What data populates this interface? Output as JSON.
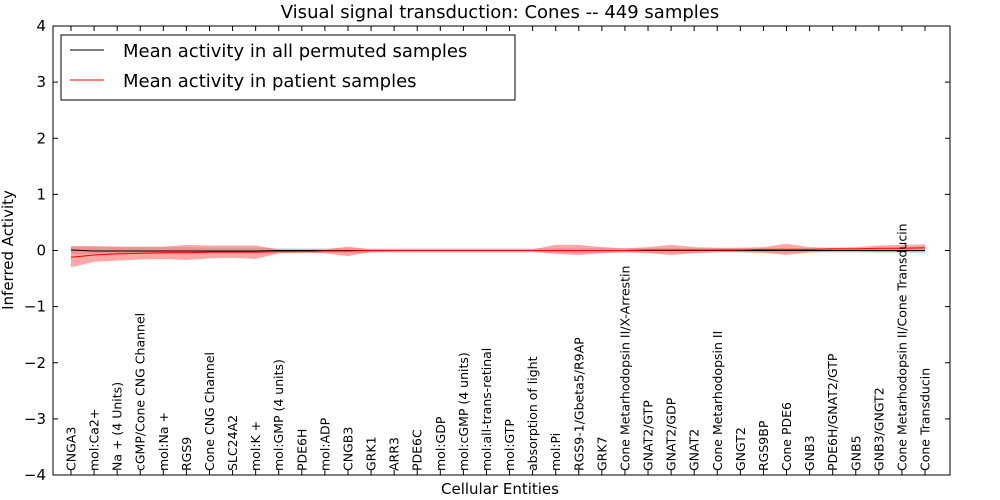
{
  "chart_data": {
    "type": "line",
    "title": "Visual signal transduction: Cones -- 449 samples",
    "xlabel": "Cellular Entities",
    "ylabel": "Inferred Activity",
    "ylim": [
      -4,
      4
    ],
    "yticks": [
      -4,
      -3,
      -2,
      -1,
      0,
      1,
      2,
      3,
      4
    ],
    "ytick_labels": [
      "−4",
      "−3",
      "−2",
      "−1",
      "0",
      "1",
      "2",
      "3",
      "4"
    ],
    "legend_position": "top-left",
    "categories": [
      "CNGA3",
      "mol:Ca2+",
      "Na + (4 Units)",
      "cGMP/Cone CNG Channel",
      "mol:Na +",
      "RGS9",
      "Cone CNG Channel",
      "SLC24A2",
      "mol:K +",
      "mol:GMP (4 units)",
      "PDE6H",
      "mol:ADP",
      "CNGB3",
      "GRK1",
      "ARR3",
      "PDE6C",
      "mol:GDP",
      "mol:cGMP (4 units)",
      "mol:all-trans-retinal",
      "mol:GTP",
      "absorption of light",
      "mol:Pi",
      "RGS9-1/Gbeta5/R9AP",
      "GRK7",
      "Cone Metarhodopsin II/X-Arrestin",
      "GNAT2/GTP",
      "GNAT2/GDP",
      "GNAT2",
      "Cone Metarhodopsin II",
      "GNGT2",
      "RGS9BP",
      "Cone PDE6",
      "GNB3",
      "PDE6H/GNAT2/GTP",
      "GNB5",
      "GNB3/GNGT2",
      "Cone Metarhodopsin II/Cone Transducin",
      "Cone Transducin"
    ],
    "series": [
      {
        "name": "Mean activity in all permuted samples",
        "color": "#000000",
        "values": [
          0.01,
          -0.01,
          -0.01,
          -0.01,
          -0.01,
          -0.01,
          -0.01,
          -0.01,
          -0.01,
          0.0,
          0.0,
          0.0,
          0.0,
          0.0,
          0.0,
          0.0,
          0.0,
          0.0,
          0.0,
          0.0,
          0.0,
          0.0,
          0.0,
          0.0,
          0.0,
          0.0,
          0.0,
          0.0,
          0.0,
          0.0,
          0.0,
          0.0,
          0.0,
          0.0,
          0.0,
          0.0,
          0.0,
          0.0
        ],
        "band_low": [
          -0.06,
          -0.06,
          -0.06,
          -0.06,
          -0.06,
          -0.06,
          -0.05,
          -0.05,
          -0.05,
          -0.04,
          -0.04,
          -0.04,
          -0.04,
          -0.04,
          -0.04,
          -0.04,
          -0.04,
          -0.04,
          -0.04,
          -0.04,
          -0.04,
          -0.04,
          -0.04,
          -0.04,
          -0.04,
          -0.04,
          -0.04,
          -0.04,
          -0.04,
          -0.04,
          -0.04,
          -0.04,
          -0.04,
          -0.04,
          -0.04,
          -0.04,
          -0.04,
          -0.06
        ],
        "band_high": [
          0.06,
          0.06,
          0.06,
          0.06,
          0.06,
          0.06,
          0.05,
          0.05,
          0.05,
          0.04,
          0.04,
          0.04,
          0.04,
          0.04,
          0.04,
          0.04,
          0.04,
          0.04,
          0.04,
          0.04,
          0.04,
          0.04,
          0.04,
          0.04,
          0.04,
          0.04,
          0.04,
          0.04,
          0.04,
          0.04,
          0.04,
          0.04,
          0.04,
          0.04,
          0.04,
          0.04,
          0.04,
          0.06
        ],
        "band_color": "#cccccc"
      },
      {
        "name": "Mean activity in patient samples",
        "color": "#ff0000",
        "values": [
          -0.12,
          -0.08,
          -0.06,
          -0.05,
          -0.04,
          -0.04,
          -0.03,
          -0.03,
          -0.03,
          -0.02,
          -0.02,
          -0.01,
          -0.01,
          0.0,
          0.0,
          0.0,
          0.0,
          0.0,
          0.0,
          0.0,
          0.0,
          0.0,
          0.0,
          0.0,
          0.0,
          0.01,
          0.01,
          0.01,
          0.01,
          0.01,
          0.02,
          0.02,
          0.02,
          0.03,
          0.03,
          0.04,
          0.04,
          0.05
        ],
        "band_low": [
          -0.3,
          -0.2,
          -0.18,
          -0.16,
          -0.15,
          -0.17,
          -0.14,
          -0.13,
          -0.15,
          -0.05,
          -0.04,
          -0.05,
          -0.1,
          -0.03,
          -0.02,
          -0.02,
          -0.02,
          -0.02,
          -0.02,
          -0.02,
          -0.02,
          -0.06,
          -0.08,
          -0.05,
          -0.03,
          -0.05,
          -0.08,
          -0.05,
          -0.03,
          -0.03,
          -0.04,
          -0.08,
          -0.03,
          -0.02,
          -0.02,
          -0.03,
          -0.03,
          -0.02
        ],
        "band_high": [
          0.08,
          0.08,
          0.07,
          0.07,
          0.07,
          0.1,
          0.09,
          0.09,
          0.09,
          0.02,
          0.02,
          0.02,
          0.07,
          0.02,
          0.02,
          0.02,
          0.02,
          0.02,
          0.02,
          0.02,
          0.02,
          0.1,
          0.1,
          0.06,
          0.04,
          0.06,
          0.1,
          0.06,
          0.05,
          0.05,
          0.06,
          0.12,
          0.06,
          0.05,
          0.06,
          0.09,
          0.1,
          0.11
        ],
        "band_color": "#ff0000"
      }
    ]
  }
}
